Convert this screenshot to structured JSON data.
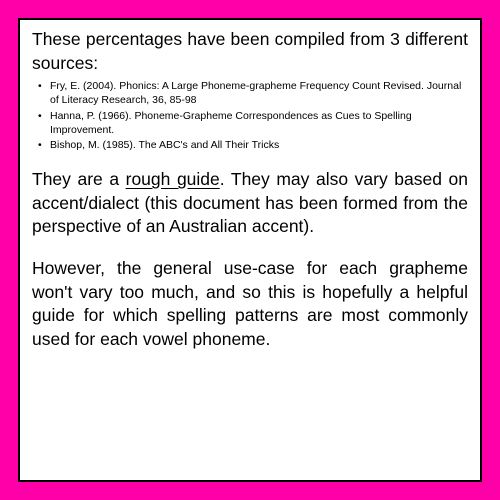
{
  "colors": {
    "page_background": "#ff00a8",
    "frame_background": "#ffffff",
    "frame_border": "#000000",
    "text": "#000000"
  },
  "typography": {
    "body_fontsize": 17.5,
    "sources_fontsize": 10.5,
    "font_family": "Comic Sans MS, Segoe UI, sans-serif",
    "line_height": 1.35
  },
  "intro": "These percentages have been compiled from 3 different sources:",
  "sources": [
    "Fry, E. (2004). Phonics: A Large Phoneme-grapheme Frequency Count Revised. Journal of Literacy Research, 36, 85-98",
    "Hanna, P. (1966). Phoneme-Grapheme Correspondences as Cues to Spelling Improvement.",
    "Bishop, M. (1985). The ABC's and All Their Tricks"
  ],
  "para1_before": "They are a ",
  "para1_underlined": "rough guide",
  "para1_after": ". They may also vary based on accent/dialect (this document has been formed from the perspective of an Australian accent).",
  "para2": "However, the general use-case for each grapheme won't vary too much, and so this is hopefully a helpful guide for which spelling patterns are most commonly used for each vowel phoneme."
}
